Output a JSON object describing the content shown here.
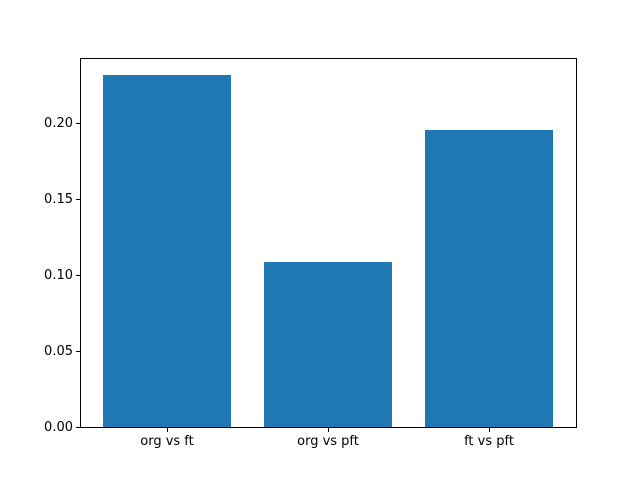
{
  "figure": {
    "background": "#ffffff",
    "spine_color": "#000000",
    "text_color": "#000000"
  },
  "chart_data": {
    "type": "bar",
    "title": "",
    "xlabel": "",
    "ylabel": "",
    "categories": [
      "org vs ft",
      "org vs pft",
      "ft vs pft"
    ],
    "values": [
      0.232,
      0.109,
      0.196
    ],
    "bar_color": "#1f77b4",
    "bar_width": 0.8,
    "xlim": [
      -0.54,
      2.54
    ],
    "ylim": [
      0,
      0.2436
    ],
    "yticks": [
      0.0,
      0.05,
      0.1,
      0.15,
      0.2
    ],
    "ytick_labels": [
      "0.00",
      "0.05",
      "0.10",
      "0.15",
      "0.20"
    ],
    "grid": false,
    "legend": "none"
  }
}
